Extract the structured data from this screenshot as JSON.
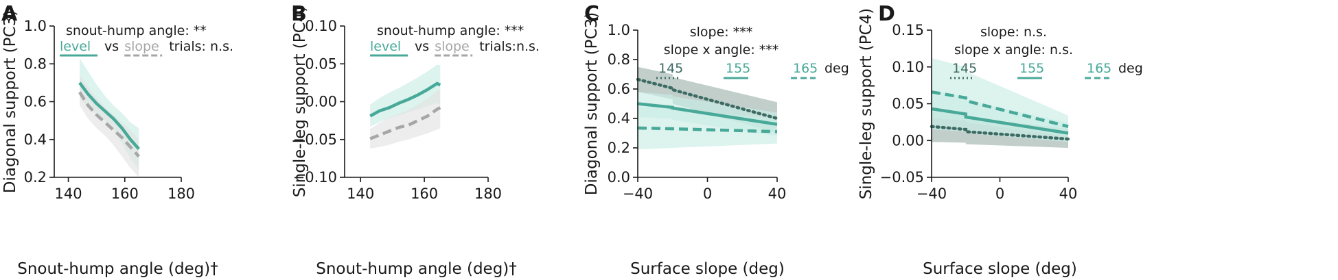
{
  "colors": {
    "teal": "#48a999",
    "teal_band": "#c9ece5",
    "gray": "#a6a6a6",
    "gray_band": "#e4e4e4",
    "dark": "#3d6b63",
    "dark_band": "#9fb3ad",
    "axis": "#1a1a1a"
  },
  "chart_data": [
    {
      "panel": "A",
      "type": "line",
      "xlabel": "Snout-hump angle (deg)†",
      "ylabel": "Diagonal support (PC3)",
      "xlim": [
        135,
        180
      ],
      "ylim": [
        0.2,
        1.0
      ],
      "xticks": [
        140,
        160,
        180
      ],
      "xtick_labels": [
        "140",
        "160",
        "180"
      ],
      "yticks": [
        0.2,
        0.4,
        0.6,
        0.8,
        1.0
      ],
      "ytick_labels": [
        "0.2",
        "0.4",
        "0.6",
        "0.8",
        "1.0"
      ],
      "annotations": [
        "snout-hump angle: **"
      ],
      "legend": {
        "items": [
          {
            "label": "level",
            "style": "teal"
          },
          {
            "label": "vs",
            "style": "text"
          },
          {
            "label": "slope",
            "style": "gray"
          },
          {
            "label": "trials: n.s.",
            "style": "text"
          }
        ]
      },
      "series": [
        {
          "name": "level",
          "style": "solid",
          "color": "teal",
          "x": [
            144,
            147,
            150,
            153,
            156,
            159,
            162,
            165
          ],
          "y": [
            0.7,
            0.64,
            0.59,
            0.55,
            0.51,
            0.46,
            0.4,
            0.35
          ],
          "y_low": [
            0.62,
            0.57,
            0.53,
            0.5,
            0.45,
            0.38,
            0.3,
            0.24
          ],
          "y_high": [
            0.83,
            0.76,
            0.69,
            0.63,
            0.58,
            0.54,
            0.49,
            0.46
          ]
        },
        {
          "name": "slope",
          "style": "dashed",
          "color": "gray",
          "x": [
            144,
            147,
            150,
            153,
            156,
            159,
            162,
            165
          ],
          "y": [
            0.65,
            0.58,
            0.53,
            0.49,
            0.45,
            0.41,
            0.36,
            0.31
          ],
          "y_low": [
            0.58,
            0.51,
            0.46,
            0.42,
            0.37,
            0.31,
            0.25,
            0.2
          ],
          "y_high": [
            0.74,
            0.68,
            0.62,
            0.57,
            0.53,
            0.49,
            0.45,
            0.4
          ]
        }
      ]
    },
    {
      "panel": "B",
      "type": "line",
      "xlabel": "Snout-hump angle (deg)†",
      "ylabel": "Single-leg support (PC4)",
      "xlim": [
        135,
        180
      ],
      "ylim": [
        -0.1,
        0.1
      ],
      "xticks": [
        140,
        160,
        180
      ],
      "xtick_labels": [
        "140",
        "160",
        "180"
      ],
      "yticks": [
        -0.1,
        -0.05,
        0.0,
        0.05,
        0.1
      ],
      "ytick_labels": [
        "−0.10",
        "−0.05",
        "0.00",
        "0.05",
        "0.10"
      ],
      "annotations": [
        "snout-hump angle: ***"
      ],
      "legend": {
        "items": [
          {
            "label": "level",
            "style": "teal"
          },
          {
            "label": "vs",
            "style": "text"
          },
          {
            "label": "slope",
            "style": "gray"
          },
          {
            "label": "trials:n.s.",
            "style": "text"
          }
        ]
      },
      "series": [
        {
          "name": "level",
          "style": "solid",
          "color": "teal",
          "x": [
            143,
            146,
            149,
            152,
            155,
            158,
            161,
            164,
            165
          ],
          "y": [
            -0.019,
            -0.012,
            -0.008,
            -0.002,
            0.003,
            0.009,
            0.016,
            0.024,
            0.022
          ],
          "y_low": [
            -0.033,
            -0.027,
            -0.022,
            -0.018,
            -0.014,
            -0.01,
            -0.006,
            -0.002,
            -0.004
          ],
          "y_high": [
            -0.004,
            0.005,
            0.012,
            0.018,
            0.025,
            0.032,
            0.04,
            0.049,
            0.048
          ]
        },
        {
          "name": "slope",
          "style": "dashed",
          "color": "gray",
          "x": [
            143,
            146,
            149,
            152,
            155,
            158,
            161,
            164,
            165
          ],
          "y": [
            -0.049,
            -0.044,
            -0.039,
            -0.034,
            -0.031,
            -0.025,
            -0.019,
            -0.01,
            -0.008
          ],
          "y_low": [
            -0.062,
            -0.06,
            -0.057,
            -0.053,
            -0.05,
            -0.046,
            -0.042,
            -0.037,
            -0.035
          ],
          "y_high": [
            -0.036,
            -0.028,
            -0.021,
            -0.016,
            -0.011,
            -0.004,
            0.004,
            0.014,
            0.016
          ]
        }
      ]
    },
    {
      "panel": "C",
      "type": "line",
      "xlabel": "Surface slope (deg)",
      "ylabel": "Diagonal support (PC3)",
      "xlim": [
        -40,
        40
      ],
      "ylim": [
        0.0,
        1.0
      ],
      "xticks": [
        -40,
        0,
        40
      ],
      "xtick_labels": [
        "−40",
        "0",
        "40"
      ],
      "yticks": [
        0.0,
        0.2,
        0.4,
        0.6,
        0.8,
        1.0
      ],
      "ytick_labels": [
        "0.0",
        "0.2",
        "0.4",
        "0.6",
        "0.8",
        "1.0"
      ],
      "annotations": [
        "slope: ***",
        "slope x angle: ***"
      ],
      "legend": {
        "items": [
          {
            "label": "145",
            "style": "dotted"
          },
          {
            "label": "155",
            "style": "solid"
          },
          {
            "label": "165",
            "style": "dashed"
          },
          {
            "label": "deg",
            "style": "text"
          }
        ]
      },
      "series": [
        {
          "name": "145",
          "style": "dotted",
          "color": "dark",
          "x": [
            -40,
            -20,
            -20,
            40
          ],
          "y": [
            0.665,
            0.605,
            0.595,
            0.4
          ],
          "y_low": [
            0.58,
            0.53,
            0.5,
            0.3
          ],
          "y_high": [
            0.75,
            0.7,
            0.68,
            0.51
          ]
        },
        {
          "name": "155",
          "style": "solid",
          "color": "teal",
          "x": [
            -40,
            -20,
            -20,
            40
          ],
          "y": [
            0.5,
            0.475,
            0.47,
            0.36
          ],
          "y_low": [
            0.41,
            0.4,
            0.39,
            0.28
          ],
          "y_high": [
            0.58,
            0.56,
            0.55,
            0.44
          ]
        },
        {
          "name": "165",
          "style": "dashed",
          "color": "teal",
          "x": [
            -40,
            -20,
            -20,
            40
          ],
          "y": [
            0.335,
            0.33,
            0.33,
            0.31
          ],
          "y_low": [
            0.19,
            0.2,
            0.2,
            0.23
          ],
          "y_high": [
            0.48,
            0.47,
            0.46,
            0.4
          ]
        }
      ]
    },
    {
      "panel": "D",
      "type": "line",
      "xlabel": "Surface slope (deg)",
      "ylabel": "Single-leg support (PC4)",
      "xlim": [
        -40,
        40
      ],
      "ylim": [
        -0.05,
        0.15
      ],
      "xticks": [
        -40,
        0,
        40
      ],
      "xtick_labels": [
        "−40",
        "0",
        "40"
      ],
      "yticks": [
        -0.05,
        0.0,
        0.05,
        0.1,
        0.15
      ],
      "ytick_labels": [
        "−0.05",
        "0.00",
        "0.05",
        "0.10",
        "0.15"
      ],
      "annotations": [
        "slope: n.s.",
        "slope x angle: n.s."
      ],
      "legend": {
        "items": [
          {
            "label": "145",
            "style": "dotted"
          },
          {
            "label": "155",
            "style": "solid"
          },
          {
            "label": "165",
            "style": "dashed"
          },
          {
            "label": "deg",
            "style": "text"
          }
        ]
      },
      "series": [
        {
          "name": "145",
          "style": "dotted",
          "color": "dark",
          "x": [
            -40,
            -20,
            -20,
            40
          ],
          "y": [
            0.019,
            0.015,
            0.012,
            0.002
          ],
          "y_low": [
            -0.002,
            -0.003,
            -0.005,
            -0.01
          ],
          "y_high": [
            0.04,
            0.035,
            0.032,
            0.016
          ]
        },
        {
          "name": "155",
          "style": "solid",
          "color": "teal",
          "x": [
            -40,
            -20,
            -20,
            40
          ],
          "y": [
            0.043,
            0.036,
            0.032,
            0.01
          ],
          "y_low": [
            0.015,
            0.012,
            0.01,
            -0.002
          ],
          "y_high": [
            0.068,
            0.06,
            0.055,
            0.024
          ]
        },
        {
          "name": "165",
          "style": "dashed",
          "color": "teal",
          "x": [
            -40,
            -20,
            -20,
            40
          ],
          "y": [
            0.066,
            0.058,
            0.054,
            0.019
          ],
          "y_low": [
            0.03,
            0.027,
            0.025,
            0.005
          ],
          "y_high": [
            0.112,
            0.1,
            0.094,
            0.034
          ]
        }
      ]
    }
  ]
}
